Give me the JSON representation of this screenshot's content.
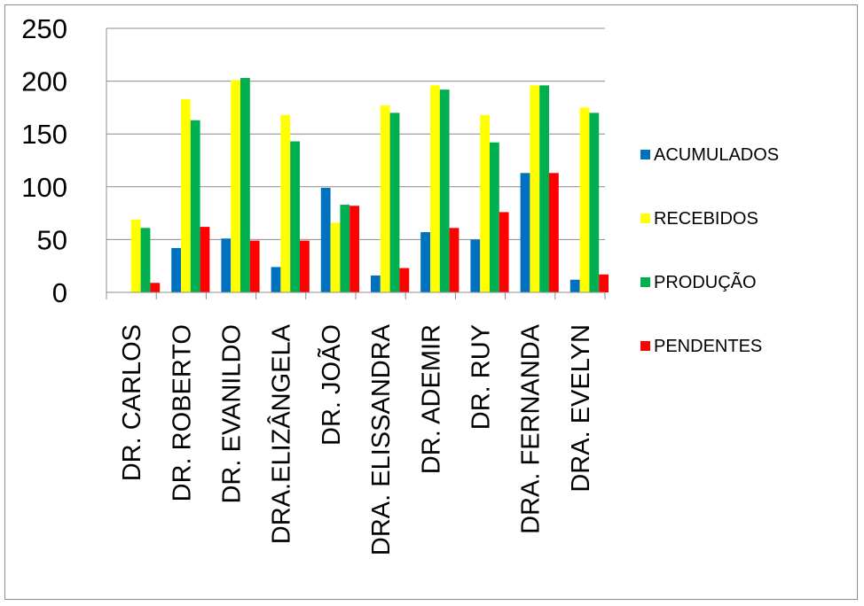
{
  "chart_data": {
    "type": "bar",
    "title": "",
    "xlabel": "",
    "ylabel": "",
    "ylim": [
      0,
      250
    ],
    "yticks": [
      0,
      50,
      100,
      150,
      200,
      250
    ],
    "grid": true,
    "legend_position": "right",
    "categories": [
      "DR. CARLOS",
      "DR. ROBERTO",
      "DR. EVANILDO",
      "DRA.ELIZÂNGELA",
      "DR. JOÃO",
      "DRA. ELISSANDRA",
      "DR. ADEMIR",
      "DR. RUY",
      "DRA. FERNANDA",
      "DRA. EVELYN"
    ],
    "series": [
      {
        "name": "ACUMULADOS",
        "color": "#0070c0",
        "values": [
          0,
          42,
          51,
          24,
          99,
          16,
          57,
          50,
          113,
          12
        ]
      },
      {
        "name": "RECEBIDOS",
        "color": "#ffff00",
        "values": [
          69,
          183,
          201,
          168,
          66,
          177,
          196,
          168,
          196,
          175
        ]
      },
      {
        "name": "PRODUÇÃO",
        "color": "#00b050",
        "values": [
          61,
          163,
          203,
          143,
          83,
          170,
          192,
          142,
          196,
          170
        ]
      },
      {
        "name": "PENDENTES",
        "color": "#ff0000",
        "values": [
          9,
          62,
          49,
          49,
          82,
          23,
          61,
          76,
          113,
          17
        ]
      }
    ]
  }
}
